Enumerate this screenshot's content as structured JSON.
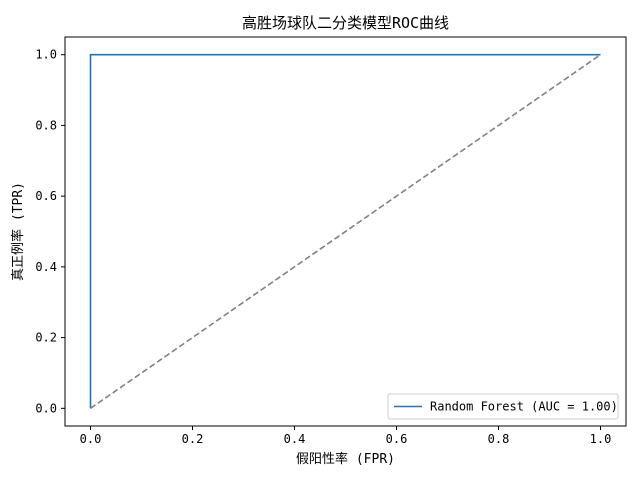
{
  "chart_data": {
    "type": "line",
    "title": "高胜场球队二分类模型ROC曲线",
    "xlabel": "假阳性率 (FPR)",
    "ylabel": "真正例率 (TPR)",
    "xlim": [
      -0.05,
      1.05
    ],
    "ylim": [
      -0.05,
      1.05
    ],
    "xticks": [
      0.0,
      0.2,
      0.4,
      0.6,
      0.8,
      1.0
    ],
    "yticks": [
      0.0,
      0.2,
      0.4,
      0.6,
      0.8,
      1.0
    ],
    "xtick_labels": [
      "0.0",
      "0.2",
      "0.4",
      "0.6",
      "0.8",
      "1.0"
    ],
    "ytick_labels": [
      "0.0",
      "0.2",
      "0.4",
      "0.6",
      "0.8",
      "1.0"
    ],
    "grid": false,
    "legend_position": "lower-right",
    "series": [
      {
        "name": "Random Forest (AUC = 1.00)",
        "color": "#1f77b4",
        "style": "solid",
        "x": [
          0.0,
          0.0,
          1.0
        ],
        "y": [
          0.0,
          1.0,
          1.0
        ]
      },
      {
        "color": "#808080",
        "style": "dashed",
        "x": [
          0.0,
          1.0
        ],
        "y": [
          0.0,
          1.0
        ]
      }
    ]
  }
}
